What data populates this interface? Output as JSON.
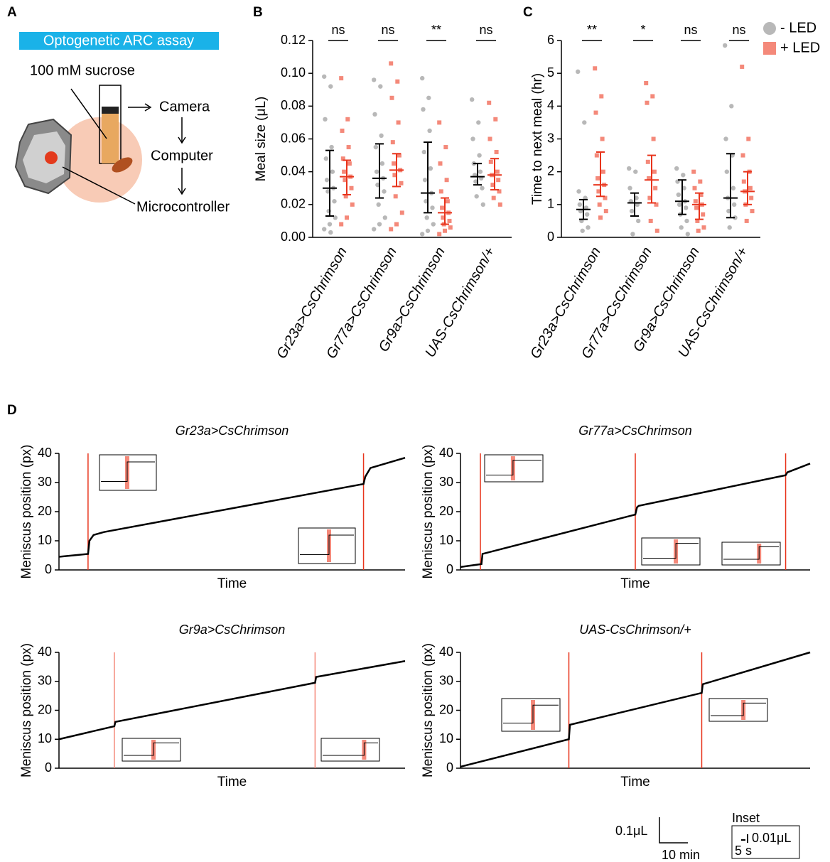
{
  "panel_labels": [
    "A",
    "B",
    "C",
    "D"
  ],
  "diagram": {
    "banner": "Optogenetic ARC assay",
    "sucrose": "100 mM sucrose",
    "camera": "Camera",
    "computer": "Computer",
    "microcontroller": "Microcontroller"
  },
  "chart_data": [
    {
      "type": "dot",
      "ylabel": "Meal size (μL)",
      "categories": [
        "Gr23a>CsChrimson",
        "Gr77a>CsChrimson",
        "Gr9a>CsChrimson",
        "UAS-CsChrimson/+"
      ],
      "annotations": [
        "ns",
        "ns",
        "**",
        "ns"
      ],
      "ylim": [
        0,
        0.12
      ],
      "yticks": [
        {
          "value": 0,
          "label": "0.00"
        },
        0.02,
        0.04,
        0.06,
        0.08,
        {
          "value": 0.1,
          "label": "0.10"
        },
        0.12
      ],
      "series": [
        {
          "color": "#b8b8b8",
          "marker": "circle",
          "error_color": "#000000",
          "points": [
            [
              0.098,
              0.092,
              0.072,
              0.055,
              0.048,
              0.04,
              0.035,
              0.03,
              0.028,
              0.022,
              0.016,
              0.012,
              0.008,
              0.005,
              0.003
            ],
            [
              0.096,
              0.092,
              0.075,
              0.062,
              0.055,
              0.045,
              0.04,
              0.036,
              0.032,
              0.028,
              0.02,
              0.012,
              0.008,
              0.005
            ],
            [
              0.097,
              0.085,
              0.078,
              0.065,
              0.052,
              0.042,
              0.035,
              0.027,
              0.022,
              0.018,
              0.012,
              0.008,
              0.004,
              0.002
            ],
            [
              0.084,
              0.07,
              0.06,
              0.05,
              0.045,
              0.04,
              0.038,
              0.036,
              0.034,
              0.03,
              0.025,
              0.02
            ]
          ],
          "center": [
            0.03,
            0.036,
            0.027,
            0.037
          ],
          "lower": [
            0.013,
            0.024,
            0.015,
            0.032
          ],
          "upper": [
            0.053,
            0.057,
            0.058,
            0.045
          ]
        },
        {
          "color": "#f4897a",
          "marker": "square",
          "error_color": "#e8341c",
          "points": [
            [
              0.097,
              0.072,
              0.065,
              0.055,
              0.048,
              0.045,
              0.04,
              0.037,
              0.035,
              0.03,
              0.025,
              0.02,
              0.012,
              0.008
            ],
            [
              0.106,
              0.095,
              0.085,
              0.07,
              0.058,
              0.05,
              0.045,
              0.041,
              0.038,
              0.033,
              0.025,
              0.015,
              0.008,
              0.005
            ],
            [
              0.07,
              0.055,
              0.045,
              0.035,
              0.028,
              0.022,
              0.018,
              0.015,
              0.012,
              0.01,
              0.008,
              0.006,
              0.004,
              0.002
            ],
            [
              0.082,
              0.072,
              0.06,
              0.052,
              0.046,
              0.04,
              0.038,
              0.035,
              0.032,
              0.028,
              0.024,
              0.02
            ]
          ],
          "center": [
            0.037,
            0.041,
            0.015,
            0.038
          ],
          "lower": [
            0.026,
            0.031,
            0.008,
            0.029
          ],
          "upper": [
            0.047,
            0.051,
            0.024,
            0.048
          ]
        }
      ]
    },
    {
      "type": "dot",
      "ylabel": "Time to next meal (hr)",
      "categories": [
        "Gr23a>CsChrimson",
        "Gr77a>CsChrimson",
        "Gr9a>CsChrimson",
        "UAS-CsChrimson/+"
      ],
      "annotations": [
        "**",
        "*",
        "ns",
        "ns"
      ],
      "ylim": [
        0,
        6
      ],
      "yticks": [
        0,
        1,
        2,
        3,
        4,
        5,
        6
      ],
      "series": [
        {
          "name": "- LED",
          "color": "#b8b8b8",
          "marker": "circle",
          "error_color": "#000000",
          "points": [
            [
              5.05,
              3.5,
              1.4,
              1.2,
              1.0,
              0.9,
              0.8,
              0.7,
              0.5,
              0.3,
              0.2
            ],
            [
              2.1,
              2.0,
              1.5,
              1.2,
              1.1,
              1.0,
              0.8,
              0.5,
              0.1
            ],
            [
              2.1,
              1.9,
              1.7,
              1.5,
              1.3,
              1.1,
              1.0,
              0.9,
              0.7,
              0.5,
              0.3,
              0.1
            ],
            [
              5.85,
              4.0,
              3.0,
              2.5,
              2.0,
              1.5,
              1.2,
              1.0,
              0.8,
              0.6,
              0.3
            ]
          ],
          "center": [
            0.85,
            1.05,
            1.1,
            1.2
          ],
          "lower": [
            0.55,
            0.65,
            0.7,
            0.6
          ],
          "upper": [
            1.15,
            1.35,
            1.75,
            2.55
          ]
        },
        {
          "name": "+ LED",
          "color": "#f4897a",
          "marker": "square",
          "error_color": "#e8341c",
          "points": [
            [
              5.15,
              4.3,
              3.8,
              3.0,
              2.5,
              2.0,
              1.8,
              1.6,
              1.4,
              1.2,
              1.0,
              0.8,
              0.6
            ],
            [
              4.7,
              4.3,
              4.1,
              3.0,
              2.3,
              2.0,
              1.8,
              1.5,
              1.2,
              1.0,
              0.5,
              0.2
            ],
            [
              2.0,
              1.7,
              1.5,
              1.3,
              1.1,
              1.0,
              0.9,
              0.7,
              0.5,
              0.3,
              0.2
            ],
            [
              5.2,
              3.0,
              2.5,
              2.0,
              1.7,
              1.5,
              1.4,
              1.2,
              1.0,
              0.8,
              0.5
            ]
          ],
          "center": [
            1.6,
            1.75,
            1.0,
            1.4
          ],
          "lower": [
            1.25,
            1.05,
            0.55,
            1.0
          ],
          "upper": [
            2.6,
            2.5,
            1.35,
            2.0
          ]
        }
      ]
    },
    {
      "type": "line",
      "title": "Gr23a>CsChrimson",
      "xlabel": "Time",
      "ylabel": "Meniscus position (px)",
      "xlim": [
        0,
        100
      ],
      "ylim": [
        0,
        40
      ],
      "yticks": [
        0,
        10,
        20,
        30,
        40
      ],
      "color": "#000000",
      "led_color": "#e8341c",
      "x": [
        0,
        8.4,
        8.8,
        10,
        13,
        88,
        88.5,
        90,
        100
      ],
      "values": [
        4.5,
        5.5,
        10,
        12,
        13,
        29.5,
        32,
        35,
        38.5
      ],
      "led_x": [
        8.4,
        88
      ]
    },
    {
      "type": "line",
      "title": "Gr77a>CsChrimson",
      "xlabel": "Time",
      "ylabel": "Meniscus position (px)",
      "xlim": [
        0,
        100
      ],
      "ylim": [
        0,
        40
      ],
      "yticks": [
        0,
        10,
        20,
        30,
        40
      ],
      "color": "#000000",
      "led_color": "#e8341c",
      "x": [
        0,
        6,
        6.3,
        50,
        50.5,
        51,
        93,
        93.5,
        100
      ],
      "values": [
        1,
        2,
        5.5,
        19,
        21.5,
        22,
        32.5,
        33.5,
        36.5
      ],
      "led_x": [
        5.7,
        50,
        93
      ]
    },
    {
      "type": "line",
      "title": "Gr9a>CsChrimson",
      "xlabel": "Time",
      "ylabel": "Meniscus position (px)",
      "xlim": [
        0,
        100
      ],
      "ylim": [
        0,
        40
      ],
      "yticks": [
        0,
        10,
        20,
        30,
        40
      ],
      "color": "#000000",
      "led_color": "#f4897a",
      "x": [
        0,
        16,
        16.3,
        74,
        74.3,
        100
      ],
      "values": [
        10,
        14.5,
        16,
        29.5,
        31.5,
        37
      ],
      "led_x": [
        16,
        74
      ]
    },
    {
      "type": "line",
      "title": "UAS-CsChrimson/+",
      "xlabel": "Time",
      "ylabel": "Meniscus position (px)",
      "xlim": [
        0,
        100
      ],
      "ylim": [
        0,
        40
      ],
      "yticks": [
        0,
        10,
        20,
        30,
        40
      ],
      "color": "#000000",
      "led_color": "#e8341c",
      "x": [
        0,
        31,
        31.3,
        69,
        69.3,
        100
      ],
      "values": [
        0.5,
        10,
        15,
        26,
        29,
        40
      ],
      "led_x": [
        31,
        69
      ]
    }
  ],
  "scale_bars": {
    "y": "0.1μL",
    "x": "10 min",
    "inset_title": "Inset",
    "inset_y": "0.01μL",
    "inset_x": "5 s"
  }
}
